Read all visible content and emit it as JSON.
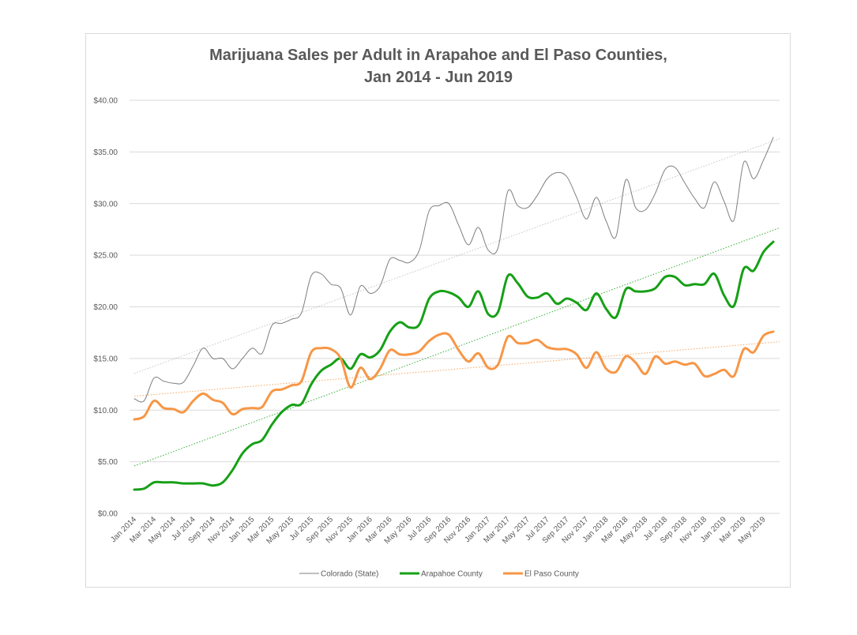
{
  "chart_data": {
    "type": "line",
    "title": "Marijuana Sales per Adult in Arapahoe and El Paso Counties,",
    "subtitle": "Jan 2014 - Jun 2019",
    "xlabel": "",
    "ylabel": "",
    "ylim": [
      0,
      40
    ],
    "y_ticks": [
      "$0.00",
      "$5.00",
      "$10.00",
      "$15.00",
      "$20.00",
      "$25.00",
      "$30.00",
      "$35.00",
      "$40.00"
    ],
    "x_tick_labels": [
      "Jan 2014",
      "Mar 2014",
      "May 2014",
      "Jul 2014",
      "Sep 2014",
      "Nov 2014",
      "Jan 2015",
      "Mar 2015",
      "May 2015",
      "Jul 2015",
      "Sep 2015",
      "Nov 2015",
      "Jan 2016",
      "Mar 2016",
      "May 2016",
      "Jul 2016",
      "Sep 2016",
      "Nov 2016",
      "Jan 2017",
      "Mar 2017",
      "May 2017",
      "Jul 2017",
      "Sep 2017",
      "Nov 2017",
      "Jan 2018",
      "Mar 2018",
      "May 2018",
      "Jul 2018",
      "Sep 2018",
      "Nov 2018",
      "Jan 2019",
      "Mar 2019",
      "May 2019"
    ],
    "grid": true,
    "legend_position": "bottom",
    "trendlines": true,
    "series": [
      {
        "name": "Colorado (State)",
        "color": "#7f7f7f",
        "values": [
          11.1,
          10.9,
          13.1,
          12.8,
          12.6,
          12.7,
          14.3,
          16.0,
          15.0,
          15.0,
          14.0,
          15.0,
          16.0,
          15.5,
          18.2,
          18.4,
          18.8,
          19.4,
          23.0,
          23.2,
          22.2,
          21.8,
          19.2,
          22.0,
          21.3,
          22.0,
          24.6,
          24.5,
          24.3,
          25.5,
          29.3,
          29.8,
          30.0,
          27.9,
          26.0,
          27.7,
          25.5,
          25.7,
          31.2,
          29.8,
          29.6,
          30.8,
          32.4,
          33.0,
          32.6,
          30.6,
          28.5,
          30.6,
          28.3,
          26.8,
          32.3,
          29.6,
          29.4,
          31.0,
          33.3,
          33.5,
          32.0,
          30.5,
          29.6,
          32.1,
          30.2,
          28.4,
          34.0,
          32.4,
          34.2,
          36.4
        ]
      },
      {
        "name": "Arapahoe County",
        "color": "#16a016",
        "values": [
          2.3,
          2.4,
          3.0,
          3.0,
          3.0,
          2.9,
          2.9,
          2.9,
          2.7,
          3.0,
          4.2,
          5.8,
          6.7,
          7.1,
          8.6,
          9.8,
          10.5,
          10.6,
          12.5,
          13.8,
          14.4,
          15.0,
          14.0,
          15.4,
          15.1,
          15.8,
          17.6,
          18.5,
          18.0,
          18.3,
          20.8,
          21.5,
          21.4,
          20.9,
          20.0,
          21.5,
          19.3,
          19.5,
          23.0,
          22.3,
          21.0,
          20.9,
          21.3,
          20.3,
          20.8,
          20.4,
          19.7,
          21.3,
          19.8,
          19.0,
          21.7,
          21.5,
          21.5,
          21.8,
          22.9,
          22.9,
          22.1,
          22.2,
          22.2,
          23.2,
          21.1,
          20.1,
          23.7,
          23.5,
          25.3,
          26.3
        ]
      },
      {
        "name": "El Paso County",
        "color": "#f79646",
        "values": [
          9.1,
          9.4,
          10.9,
          10.2,
          10.1,
          9.8,
          10.9,
          11.6,
          11.0,
          10.7,
          9.6,
          10.1,
          10.2,
          10.3,
          11.8,
          12.0,
          12.4,
          12.8,
          15.6,
          16.0,
          15.9,
          15.0,
          12.2,
          14.1,
          13.0,
          14.0,
          15.8,
          15.4,
          15.4,
          15.7,
          16.7,
          17.3,
          17.3,
          15.8,
          14.7,
          15.5,
          14.1,
          14.4,
          17.1,
          16.5,
          16.5,
          16.8,
          16.1,
          15.9,
          15.9,
          15.4,
          14.1,
          15.6,
          14.0,
          13.7,
          15.2,
          14.6,
          13.5,
          15.2,
          14.5,
          14.7,
          14.4,
          14.5,
          13.3,
          13.5,
          13.9,
          13.3,
          15.9,
          15.6,
          17.2,
          17.6
        ]
      }
    ]
  }
}
